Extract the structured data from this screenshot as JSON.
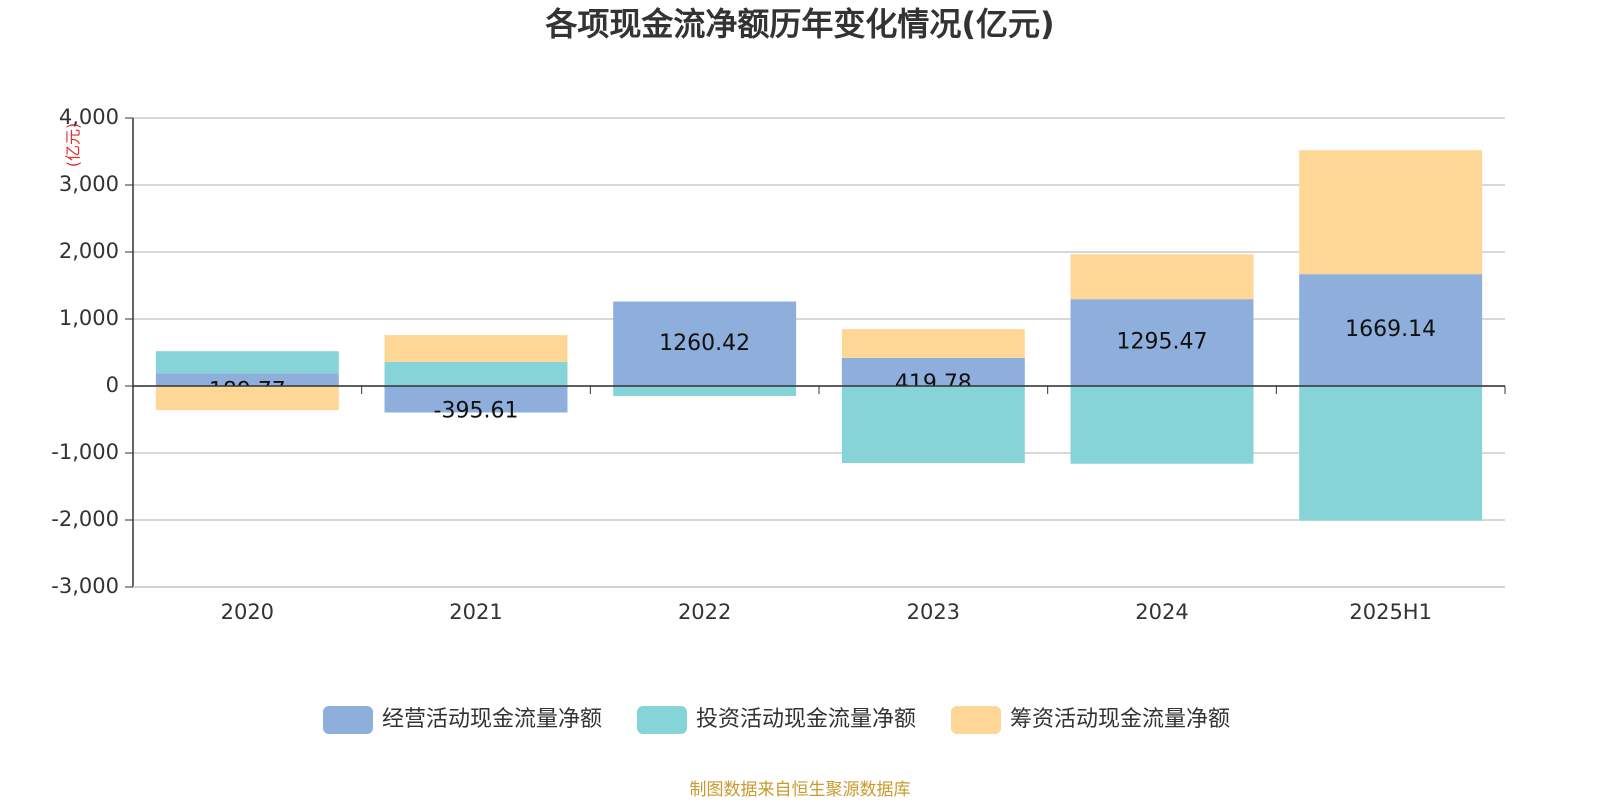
{
  "chart_data": {
    "type": "stacked-bar",
    "title": "各项现金流净额历年变化情况(亿元)",
    "y_unit": "(亿元)",
    "source": "制图数据来自恒生聚源数据库",
    "categories": [
      "2020",
      "2021",
      "2022",
      "2023",
      "2024",
      "2025H1"
    ],
    "series": [
      {
        "name": "经营活动现金流量净额",
        "color": "#8eaedb",
        "values": [
          189.77,
          -395.61,
          1260.42,
          419.78,
          1295.47,
          1669.14
        ],
        "show_labels": true
      },
      {
        "name": "投资活动现金流量净额",
        "color": "#86d4d8",
        "values": [
          330,
          360,
          -150,
          -1150,
          -1160,
          -2010
        ]
      },
      {
        "name": "筹资活动现金流量净额",
        "color": "#fed797",
        "values": [
          -360,
          400,
          0,
          430,
          670,
          1850
        ]
      }
    ],
    "ylim": [
      -3000,
      4000
    ],
    "yticks": [
      {
        "value": -3000,
        "label": "-3,000"
      },
      {
        "value": -2000,
        "label": "-2,000"
      },
      {
        "value": -1000,
        "label": "-1,000"
      },
      0,
      {
        "value": 1000,
        "label": "1,000"
      },
      {
        "value": 2000,
        "label": "2,000"
      },
      {
        "value": 3000,
        "label": "3,000"
      },
      {
        "value": 4000,
        "label": "4,000"
      }
    ],
    "grid": true
  }
}
